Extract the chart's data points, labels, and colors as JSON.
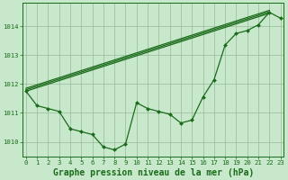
{
  "xlabel": "Graphe pression niveau de la mer (hPa)",
  "bg_color": "#c8e8cc",
  "grid_color": "#99bb99",
  "line_color": "#1a6b1a",
  "ylim": [
    1009.5,
    1014.8
  ],
  "xlim": [
    -0.3,
    23.3
  ],
  "yticks": [
    1010,
    1011,
    1012,
    1013,
    1014
  ],
  "xticks": [
    0,
    1,
    2,
    3,
    4,
    5,
    6,
    7,
    8,
    9,
    10,
    11,
    12,
    13,
    14,
    15,
    16,
    17,
    18,
    19,
    20,
    21,
    22,
    23
  ],
  "straight_lines": [
    [
      [
        0,
        1011.75
      ],
      [
        22,
        1014.45
      ]
    ],
    [
      [
        0,
        1011.8
      ],
      [
        22,
        1014.5
      ]
    ],
    [
      [
        0,
        1011.85
      ],
      [
        22,
        1014.55
      ]
    ]
  ],
  "zigzag": [
    1011.75,
    1011.25,
    1011.15,
    1011.05,
    1010.45,
    1010.35,
    1010.25,
    1009.82,
    1009.72,
    1009.92,
    1011.35,
    1011.15,
    1011.05,
    1010.95,
    1010.65,
    1010.75,
    1011.55,
    1012.15,
    1013.35,
    1013.75,
    1013.85,
    1014.05,
    1014.48,
    1014.28
  ],
  "marker": "D",
  "marker_size": 2.0,
  "line_width": 0.9,
  "tick_fontsize": 5.2,
  "xlabel_fontsize": 7.0
}
